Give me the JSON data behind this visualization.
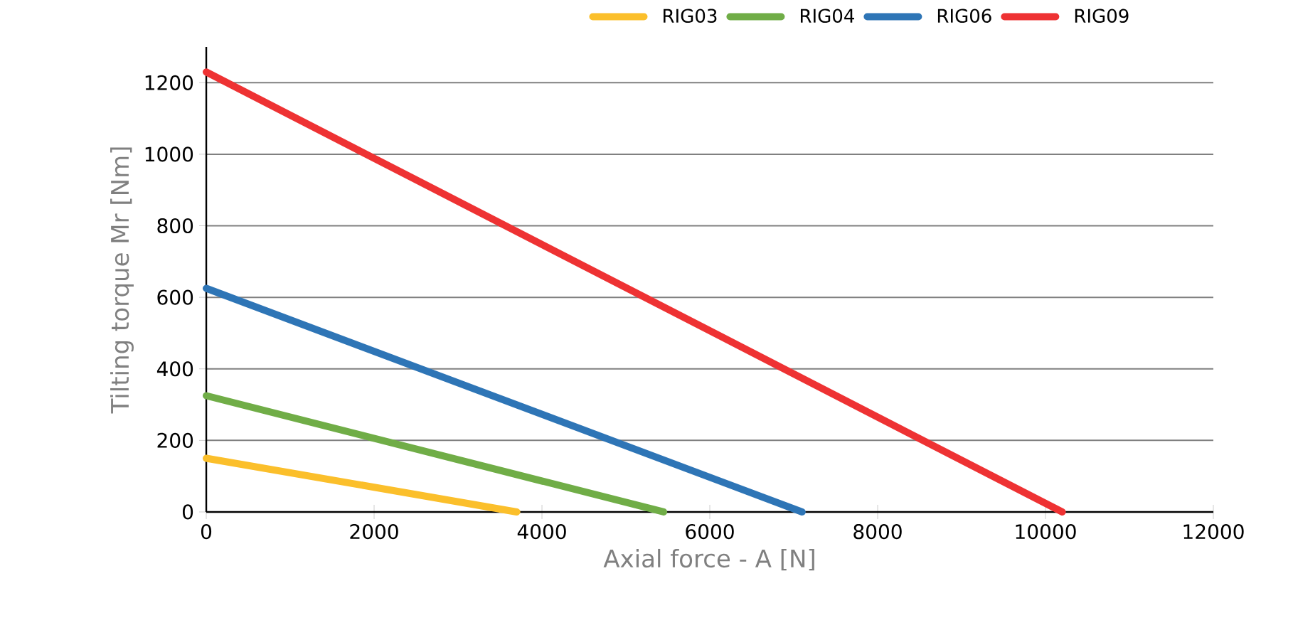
{
  "chart_data": {
    "type": "line",
    "xlabel": "Axial force - A [N]",
    "ylabel": "Tilting torque Mr [Nm]",
    "xlim": [
      0,
      12000
    ],
    "ylim": [
      0,
      1300
    ],
    "xticks": [
      0,
      2000,
      4000,
      6000,
      8000,
      10000,
      12000
    ],
    "yticks": [
      0,
      200,
      400,
      600,
      800,
      1000,
      1200
    ],
    "grid": "y",
    "legend": "top",
    "marker": "none",
    "line_style": "solid",
    "series": [
      {
        "name": "RIG03",
        "color": "#fbbf2b",
        "x": [
          0,
          3700
        ],
        "values": [
          150,
          0
        ]
      },
      {
        "name": "RIG04",
        "color": "#70ad47",
        "x": [
          0,
          5450
        ],
        "values": [
          325,
          0
        ]
      },
      {
        "name": "RIG06",
        "color": "#2e75b6",
        "x": [
          0,
          7100
        ],
        "values": [
          625,
          0
        ]
      },
      {
        "name": "RIG09",
        "color": "#ee3233",
        "x": [
          0,
          10200
        ],
        "values": [
          1230,
          0
        ]
      }
    ]
  }
}
